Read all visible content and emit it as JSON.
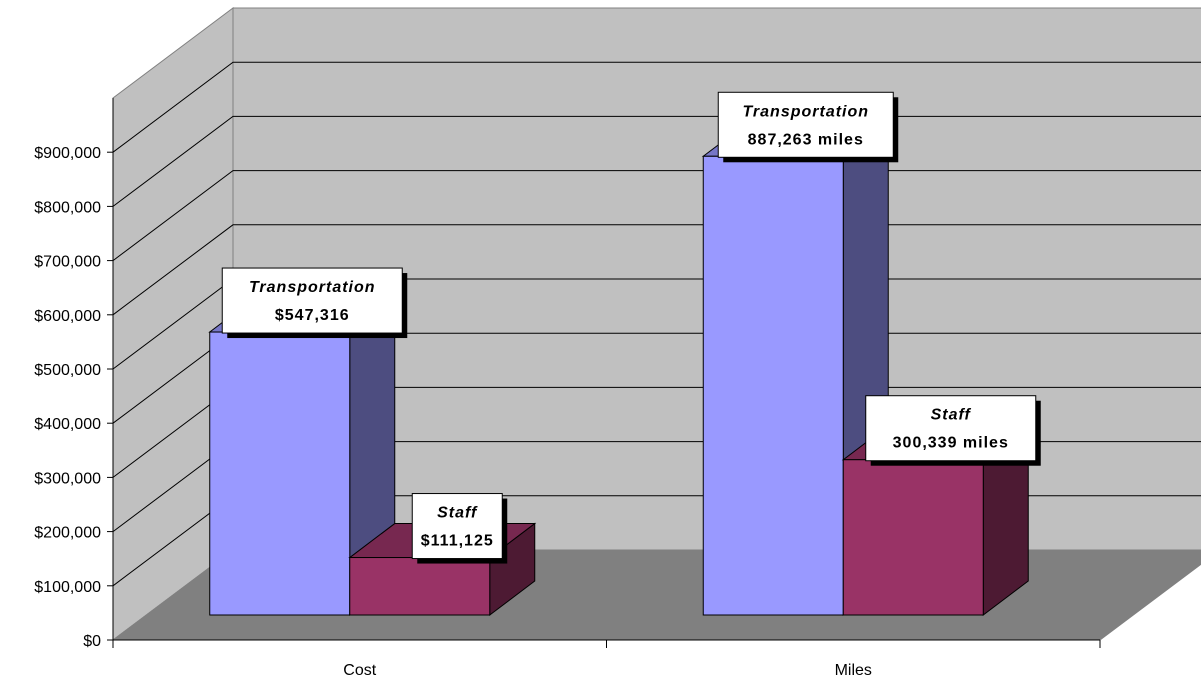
{
  "chart_data": {
    "type": "bar",
    "style": "3d-clustered-column",
    "categories": [
      "Cost",
      "Miles"
    ],
    "series": [
      {
        "name": "Transportation",
        "values": [
          547316,
          887263
        ],
        "color": "#9999ff"
      },
      {
        "name": "Staff",
        "values": [
          111125,
          300339
        ],
        "color": "#993366"
      }
    ],
    "data_labels": [
      [
        {
          "title": "Transportation",
          "value": "$547,316"
        },
        {
          "title": "Staff",
          "value": "$111,125"
        }
      ],
      [
        {
          "title": "Transportation",
          "value": "887,263 miles"
        },
        {
          "title": "Staff",
          "value": "300,339 miles"
        }
      ]
    ],
    "y_ticks": [
      "$0",
      "$100,000",
      "$200,000",
      "$300,000",
      "$400,000",
      "$500,000",
      "$600,000",
      "$700,000",
      "$800,000",
      "$900,000"
    ],
    "ylim": [
      0,
      1000000
    ],
    "grid": true,
    "colors": {
      "wall": "#c0c0c0",
      "floor": "#808080",
      "gridline": "#000000"
    }
  }
}
